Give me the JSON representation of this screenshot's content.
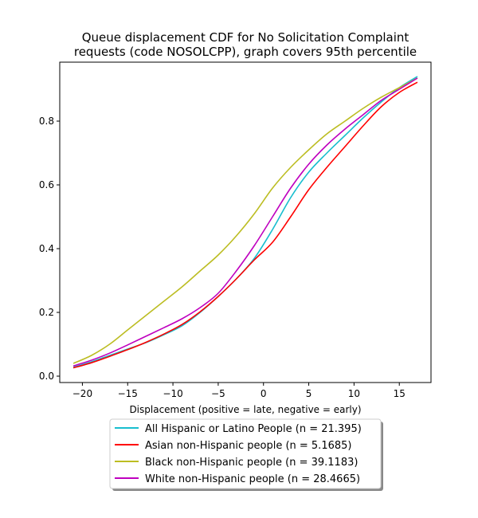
{
  "chart_data": {
    "type": "line",
    "title_lines": [
      "Queue displacement CDF for No Solicitation Complaint",
      "requests (code NOSOLCPP), graph covers 95th percentile"
    ],
    "xlabel": "Displacement (positive = late, negative = early)",
    "ylabel": "",
    "xlim": [
      -22.5,
      18.5
    ],
    "ylim": [
      -0.02,
      0.985
    ],
    "xticks": [
      -20,
      -15,
      -10,
      -5,
      0,
      5,
      10,
      15
    ],
    "yticks": [
      0.0,
      0.2,
      0.4,
      0.6,
      0.8
    ],
    "xtick_labels": [
      "−20",
      "−15",
      "−10",
      "−5",
      "0",
      "5",
      "10",
      "15"
    ],
    "ytick_labels": [
      "0.0",
      "0.2",
      "0.4",
      "0.6",
      "0.8"
    ],
    "grid": false,
    "legend_position": "below plot",
    "series": [
      {
        "name": "All Hispanic or Latino People (n = 21.395)",
        "color": "#17becf",
        "points": [
          [
            -21,
            0.028
          ],
          [
            -19,
            0.045
          ],
          [
            -17,
            0.065
          ],
          [
            -15,
            0.085
          ],
          [
            -13,
            0.105
          ],
          [
            -11,
            0.13
          ],
          [
            -9,
            0.158
          ],
          [
            -7,
            0.2
          ],
          [
            -5,
            0.25
          ],
          [
            -3,
            0.305
          ],
          [
            -1,
            0.37
          ],
          [
            1,
            0.46
          ],
          [
            3,
            0.56
          ],
          [
            5,
            0.64
          ],
          [
            7,
            0.7
          ],
          [
            9,
            0.755
          ],
          [
            11,
            0.81
          ],
          [
            13,
            0.86
          ],
          [
            15,
            0.905
          ],
          [
            17,
            0.94
          ]
        ]
      },
      {
        "name": "Asian non-Hispanic people (n = 5.1685)",
        "color": "#ff0000",
        "points": [
          [
            -21,
            0.026
          ],
          [
            -19,
            0.042
          ],
          [
            -17,
            0.062
          ],
          [
            -15,
            0.083
          ],
          [
            -13,
            0.106
          ],
          [
            -11,
            0.132
          ],
          [
            -9,
            0.162
          ],
          [
            -7,
            0.202
          ],
          [
            -5,
            0.25
          ],
          [
            -3,
            0.305
          ],
          [
            -1,
            0.365
          ],
          [
            1,
            0.42
          ],
          [
            3,
            0.5
          ],
          [
            5,
            0.585
          ],
          [
            7,
            0.655
          ],
          [
            9,
            0.72
          ],
          [
            11,
            0.785
          ],
          [
            13,
            0.845
          ],
          [
            15,
            0.89
          ],
          [
            17,
            0.922
          ]
        ]
      },
      {
        "name": "Black non-Hispanic people (n = 39.1183)",
        "color": "#bcbd22",
        "points": [
          [
            -21,
            0.04
          ],
          [
            -19,
            0.065
          ],
          [
            -17,
            0.1
          ],
          [
            -15,
            0.145
          ],
          [
            -13,
            0.19
          ],
          [
            -11,
            0.235
          ],
          [
            -9,
            0.28
          ],
          [
            -7,
            0.33
          ],
          [
            -5,
            0.38
          ],
          [
            -3,
            0.44
          ],
          [
            -1,
            0.51
          ],
          [
            1,
            0.59
          ],
          [
            3,
            0.655
          ],
          [
            5,
            0.71
          ],
          [
            7,
            0.76
          ],
          [
            9,
            0.8
          ],
          [
            11,
            0.84
          ],
          [
            13,
            0.875
          ],
          [
            15,
            0.905
          ],
          [
            17,
            0.935
          ]
        ]
      },
      {
        "name": "White non-Hispanic people (n = 28.4665)",
        "color": "#bf00bf",
        "points": [
          [
            -21,
            0.032
          ],
          [
            -19,
            0.05
          ],
          [
            -17,
            0.072
          ],
          [
            -15,
            0.098
          ],
          [
            -13,
            0.125
          ],
          [
            -11,
            0.152
          ],
          [
            -9,
            0.18
          ],
          [
            -7,
            0.215
          ],
          [
            -5,
            0.26
          ],
          [
            -3,
            0.33
          ],
          [
            -1,
            0.41
          ],
          [
            1,
            0.5
          ],
          [
            3,
            0.59
          ],
          [
            5,
            0.665
          ],
          [
            7,
            0.725
          ],
          [
            9,
            0.775
          ],
          [
            11,
            0.82
          ],
          [
            13,
            0.865
          ],
          [
            15,
            0.9
          ],
          [
            17,
            0.935
          ]
        ]
      }
    ]
  }
}
